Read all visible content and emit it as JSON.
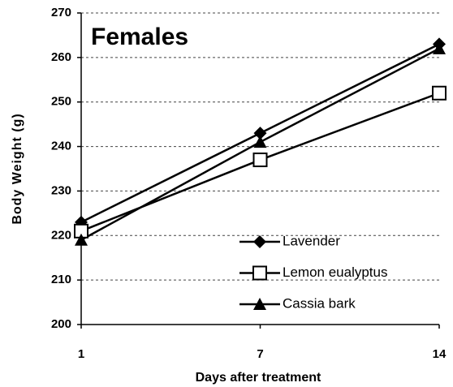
{
  "chart_data": {
    "type": "line",
    "title": "Females",
    "x_label": "Days after treatment",
    "y_label": "Body Weight (g)",
    "categories": [
      "1",
      "7",
      "14"
    ],
    "series": [
      {
        "name": "Lavender",
        "color": "#000000",
        "marker": "diamond",
        "values": [
          223,
          243,
          263
        ]
      },
      {
        "name": "Lemon eualyptus",
        "color": "#000000",
        "marker": "square-open",
        "values": [
          221,
          237,
          252
        ]
      },
      {
        "name": "Cassia bark",
        "color": "#000000",
        "marker": "triangle",
        "values": [
          219,
          241,
          262
        ]
      }
    ],
    "ylim": [
      200,
      270
    ],
    "yticks": [
      200,
      210,
      220,
      230,
      240,
      250,
      260,
      270
    ],
    "grid": true
  }
}
